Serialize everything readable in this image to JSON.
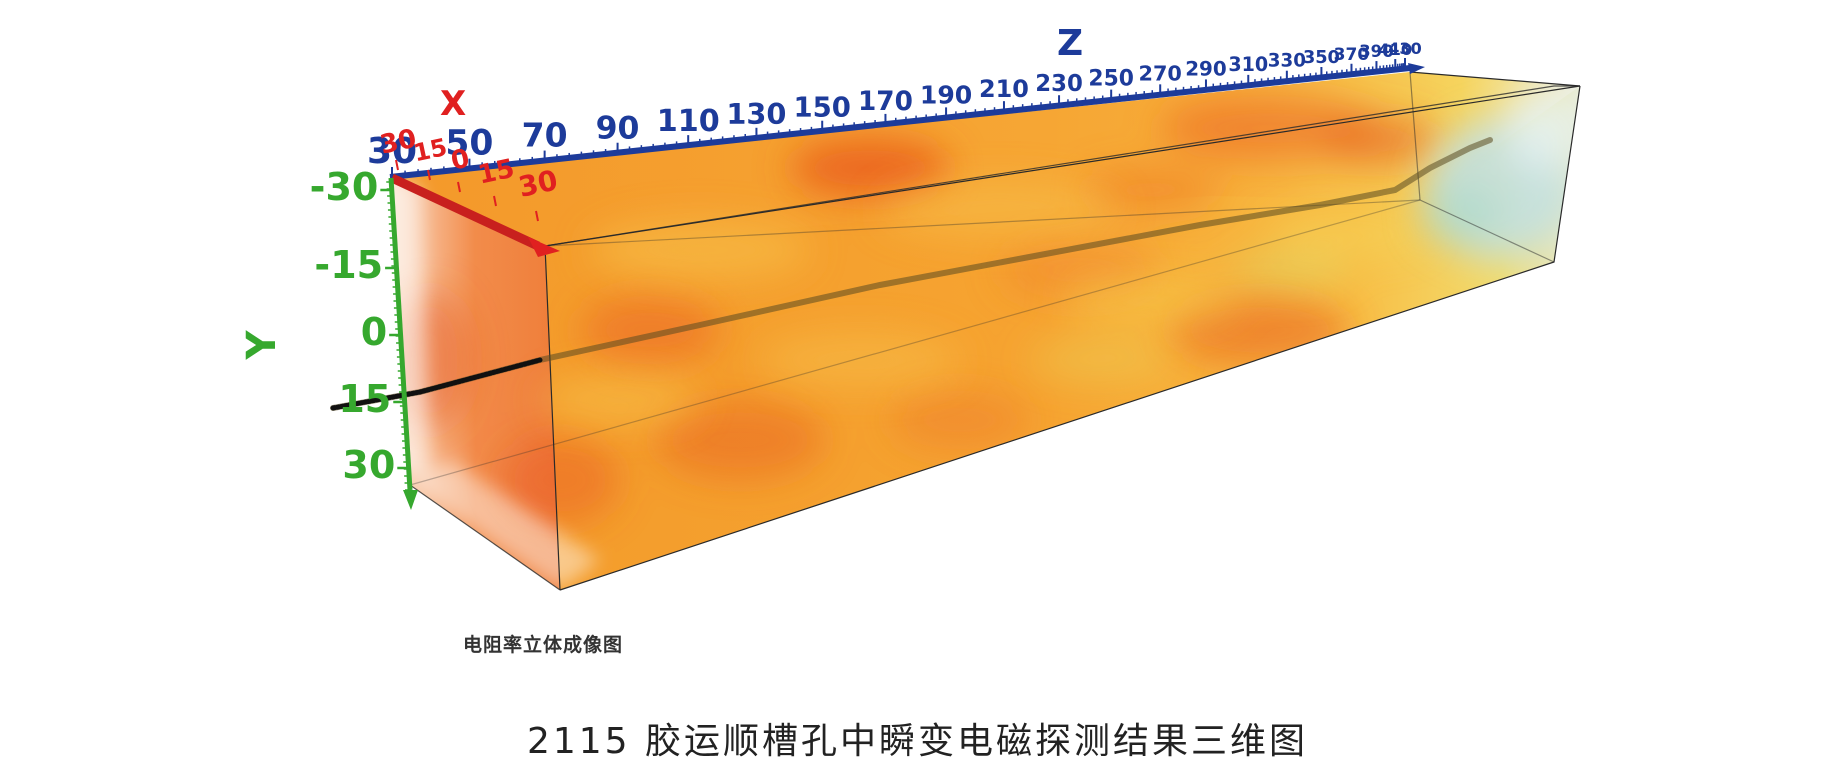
{
  "figure": {
    "image_caption": "电阻率立体成像图",
    "figure_caption": "2115 胶运顺槽孔中瞬变电磁探测结果三维图"
  },
  "axes": {
    "x": {
      "label": "X",
      "ticks": [
        "30",
        "15",
        "0",
        "15",
        "30"
      ],
      "color": "#e02020"
    },
    "y": {
      "label": "Y",
      "ticks": [
        "-30",
        "-15",
        "0",
        "15",
        "30"
      ],
      "color": "#36a82e"
    },
    "z": {
      "label": "Z",
      "ticks": [
        "30",
        "50",
        "70",
        "90",
        "110",
        "130",
        "150",
        "170",
        "190",
        "210",
        "230",
        "250",
        "270",
        "290",
        "310",
        "330",
        "350",
        "370",
        "390",
        "410",
        "430"
      ],
      "color": "#1d3b9a"
    }
  },
  "colors": {
    "volume_main": "#f5a02a",
    "volume_hot": "#e8561e",
    "volume_cool": "#bfe0e8",
    "borehole": "#1a1a1a"
  },
  "icons": [
    "x-axis-arrow",
    "y-axis-arrow",
    "z-axis-arrow",
    "borehole-trace"
  ]
}
